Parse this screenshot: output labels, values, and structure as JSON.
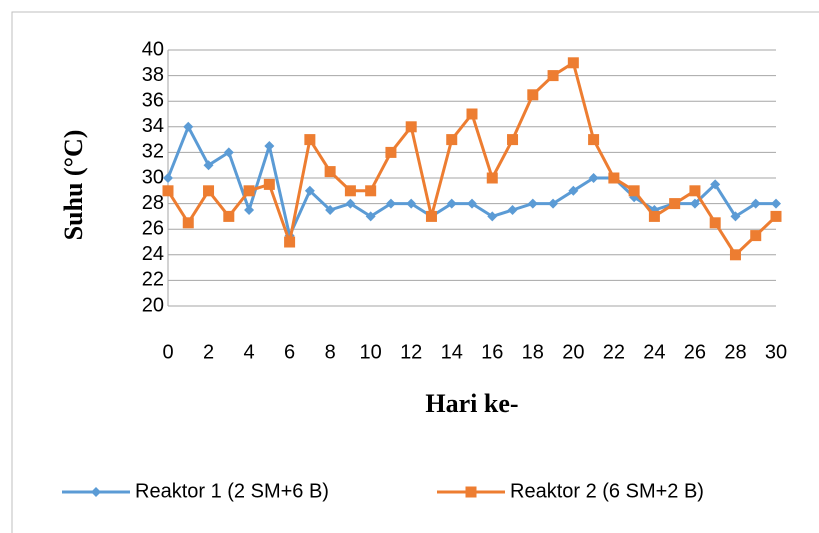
{
  "chart_data": {
    "type": "line",
    "x_label": "Hari  ke-",
    "y_label": "Suhu (°C)",
    "x": [
      0,
      1,
      2,
      3,
      4,
      5,
      6,
      7,
      8,
      9,
      10,
      11,
      12,
      13,
      14,
      15,
      16,
      17,
      18,
      19,
      20,
      21,
      22,
      23,
      24,
      25,
      26,
      27,
      28,
      29,
      30
    ],
    "xlim": [
      0,
      30
    ],
    "xticks": [
      0,
      2,
      4,
      6,
      8,
      10,
      12,
      14,
      16,
      18,
      20,
      22,
      24,
      26,
      28,
      30
    ],
    "ylim": [
      20,
      40
    ],
    "yticks": [
      20,
      22,
      24,
      26,
      28,
      30,
      32,
      34,
      36,
      38,
      40
    ],
    "grid": true,
    "legend": "bottom",
    "series": [
      {
        "name": "Reaktor 1 (2 SM+6 B)",
        "color": "#5b9bd5",
        "marker": "diamond",
        "values": [
          30,
          34,
          31,
          32,
          27.5,
          32.5,
          25.5,
          29,
          27.5,
          28,
          27,
          28,
          28,
          27,
          28,
          28,
          27,
          27.5,
          28,
          28,
          29,
          30,
          30,
          28.5,
          27.5,
          28,
          28,
          29.5,
          27,
          28,
          28
        ]
      },
      {
        "name": "Reaktor 2 (6 SM+2 B)",
        "color": "#ed7d31",
        "marker": "square",
        "values": [
          29,
          26.5,
          29,
          27,
          29,
          29.5,
          25,
          33,
          30.5,
          29,
          29,
          32,
          34,
          27,
          33,
          35,
          30,
          33,
          36.5,
          38,
          39,
          33,
          30,
          29,
          27,
          28,
          29,
          26.5,
          24,
          25.5,
          27
        ]
      }
    ]
  }
}
